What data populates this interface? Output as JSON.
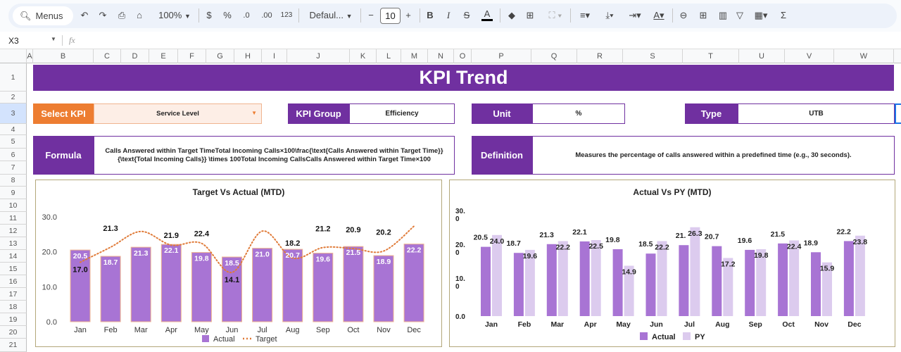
{
  "toolbar": {
    "search_label": "Menus",
    "zoom": "100%",
    "currency": "$",
    "percent": "%",
    "decrease_decimal": ".0",
    "increase_decimal": ".00",
    "number_format": "123",
    "font": "Defaul...",
    "font_size": "10",
    "icons": [
      "search-icon",
      "undo-icon",
      "redo-icon",
      "print-icon",
      "paint-format-icon",
      "bold-icon",
      "italic-icon",
      "strikethrough-icon",
      "text-color-icon",
      "fill-color-icon",
      "borders-icon",
      "merge-icon",
      "align-icon",
      "valign-icon",
      "wrap-icon",
      "rotate-icon",
      "link-icon",
      "comment-icon",
      "chart-icon",
      "filter-icon",
      "functions-table-icon",
      "sigma-icon"
    ]
  },
  "formula_bar": {
    "cell_ref": "X3",
    "fx": "fx",
    "value": ""
  },
  "columns": [
    "A",
    "B",
    "C",
    "D",
    "E",
    "F",
    "G",
    "H",
    "I",
    "J",
    "K",
    "L",
    "M",
    "N",
    "O",
    "P",
    "Q",
    "R",
    "S",
    "T",
    "U",
    "V",
    "W"
  ],
  "rows": [
    "1",
    "2",
    "3",
    "4",
    "5",
    "6",
    "7",
    "8",
    "9",
    "10",
    "11",
    "12",
    "13",
    "14",
    "15",
    "16",
    "17",
    "18",
    "19",
    "20",
    "21"
  ],
  "sheet": {
    "title": "KPI Trend",
    "select_kpi_label": "Select KPI",
    "select_kpi_value": "Service Level",
    "kpi_group_label": "KPI Group",
    "kpi_group_value": "Efficiency",
    "unit_label": "Unit",
    "unit_value": "%",
    "type_label": "Type",
    "type_value": "UTB",
    "formula_label": "Formula",
    "formula_value": "Calls Answered within Target TimeTotal Incoming Calls×100\\frac{\\text{Calls Answered within Target Time}}{\\text{Total Incoming Calls}} \\times 100Total Incoming CallsCalls Answered within Target Time×100",
    "definition_label": "Definition",
    "definition_value": "Measures the percentage of calls answered within a predefined time (e.g., 30 seconds).",
    "colors": {
      "purple": "#7030a0",
      "orange": "#ed7d31",
      "input_bg": "#fdeee6"
    }
  },
  "chart_data": [
    {
      "type": "bar",
      "title": "Target Vs Actual (MTD)",
      "categories": [
        "Jan",
        "Feb",
        "Mar",
        "Apr",
        "May",
        "Jun",
        "Jul",
        "Aug",
        "Sep",
        "Oct",
        "Nov",
        "Dec"
      ],
      "yticks": [
        "0.0",
        "10.0",
        "20.0",
        "30.0"
      ],
      "ylim": [
        0,
        30
      ],
      "series": [
        {
          "name": "Actual",
          "kind": "bar",
          "color": "#a874d4",
          "values": [
            20.5,
            18.7,
            21.3,
            22.1,
            19.8,
            18.5,
            21.0,
            20.7,
            19.6,
            21.5,
            18.9,
            22.2
          ],
          "labels": [
            "20.5",
            "18.7",
            "21.3",
            "22.1",
            "19.8",
            "18.5",
            "21.0",
            "20.7",
            "19.6",
            "21.5",
            "18.9",
            "22.2"
          ]
        },
        {
          "name": "Target",
          "kind": "dotted-line",
          "color": "#e07b39",
          "values": [
            17.0,
            21.3,
            25.8,
            21.9,
            22.4,
            14.1,
            25.9,
            18.2,
            21.2,
            20.9,
            20.2,
            27.3
          ],
          "labels": [
            "17.0",
            "21.3",
            "",
            "21.9",
            "22.4",
            "14.1",
            "",
            "18.2",
            "21.2",
            "20.9",
            "20.2",
            ""
          ]
        }
      ],
      "legend": "bottom"
    },
    {
      "type": "bar",
      "title": "Actual Vs PY (MTD)",
      "categories": [
        "Jan",
        "Feb",
        "Mar",
        "Apr",
        "May",
        "Jun",
        "Jul",
        "Aug",
        "Sep",
        "Oct",
        "Nov",
        "Dec"
      ],
      "yticks": [
        "0.0",
        "10.\n0",
        "20.\n0",
        "30.\n0"
      ],
      "ylim": [
        0,
        30
      ],
      "series": [
        {
          "name": "Actual",
          "color": "#a874d4",
          "values": [
            20.5,
            18.7,
            21.3,
            22.1,
            19.8,
            18.5,
            21.0,
            20.7,
            19.6,
            21.5,
            18.9,
            22.2
          ],
          "labels": [
            "20.5",
            "18.7",
            "21.3",
            "22.1",
            "19.8",
            "18.5",
            "21.",
            "20.7",
            "19.6",
            "21.5",
            "18.9",
            "22.2"
          ]
        },
        {
          "name": "PY",
          "color": "#dccbee",
          "values": [
            24.0,
            19.6,
            22.2,
            22.5,
            14.9,
            22.2,
            26.3,
            17.2,
            19.8,
            22.4,
            15.9,
            23.8
          ],
          "labels": [
            "24.0",
            "19.6",
            "22.2",
            "22.5",
            "14.9",
            "22.2",
            "26.3",
            "17.2",
            "19.8",
            "22.4",
            "15.9",
            "23.8"
          ]
        }
      ],
      "legend": "bottom"
    }
  ]
}
